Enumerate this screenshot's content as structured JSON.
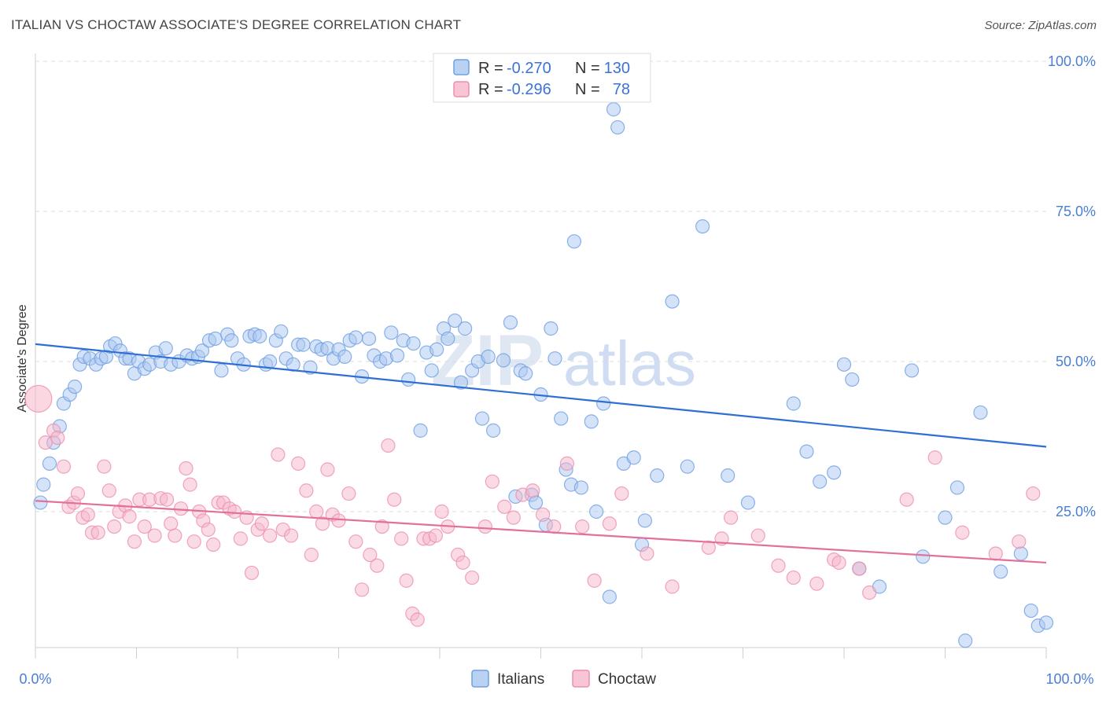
{
  "title": "ITALIAN VS CHOCTAW ASSOCIATE'S DEGREE CORRELATION CHART",
  "source": "Source: ZipAtlas.com",
  "watermark": {
    "zip": "ZIP",
    "atlas": "atlas"
  },
  "legend": {
    "rows": [
      {
        "r_label": "R =",
        "r_value": "-0.270",
        "n_label": "N =",
        "n_value": "130",
        "color": "#a9c7ef"
      },
      {
        "r_label": "R =",
        "r_value": "-0.296",
        "n_label": "N =",
        "n_value": "78",
        "color": "#f6b6c9"
      }
    ]
  },
  "bottom_legend": [
    {
      "label": "Italians",
      "color": "#a9c7ef"
    },
    {
      "label": "Choctaw",
      "color": "#f6b6c9"
    }
  ],
  "chart_data": {
    "type": "scatter",
    "ylabel": "Associate's Degree",
    "xlim": [
      0,
      100
    ],
    "ylim": [
      0,
      100
    ],
    "x_tick_labels": {
      "left": "0.0%",
      "right": "100.0%"
    },
    "y_tick_labels": [
      "25.0%",
      "50.0%",
      "75.0%",
      "100.0%"
    ],
    "y_tick_values": [
      25,
      50,
      75,
      100
    ],
    "grid": "horizontal dashed",
    "series": [
      {
        "name": "Italians",
        "color": "#6f9fe3",
        "fill": "#a9c7ef",
        "trend": {
          "x0": 0,
          "y0": 52.9,
          "x1": 100,
          "y1": 35.8,
          "color": "#2f6fd4"
        },
        "points": [
          [
            0.5,
            26.5
          ],
          [
            0.8,
            29.5
          ],
          [
            1.4,
            33
          ],
          [
            1.8,
            36.5
          ],
          [
            2.4,
            39.2
          ],
          [
            2.8,
            43
          ],
          [
            3.4,
            44.5
          ],
          [
            3.9,
            45.8
          ],
          [
            4.4,
            49.5
          ],
          [
            4.8,
            50.8
          ],
          [
            5.4,
            50.5
          ],
          [
            6,
            49.5
          ],
          [
            6.5,
            50.5
          ],
          [
            7,
            50.8
          ],
          [
            7.4,
            52.5
          ],
          [
            7.9,
            53
          ],
          [
            8.4,
            51.8
          ],
          [
            8.9,
            50.5
          ],
          [
            9.3,
            50.5
          ],
          [
            9.8,
            48
          ],
          [
            10.2,
            50
          ],
          [
            10.8,
            48.8
          ],
          [
            11.3,
            49.5
          ],
          [
            11.9,
            51.5
          ],
          [
            12.4,
            50
          ],
          [
            12.9,
            52.2
          ],
          [
            13.4,
            49.5
          ],
          [
            14.2,
            50
          ],
          [
            15,
            51
          ],
          [
            15.5,
            50.5
          ],
          [
            16.1,
            50.8
          ],
          [
            16.5,
            51.8
          ],
          [
            17.2,
            53.5
          ],
          [
            17.8,
            53.8
          ],
          [
            18.4,
            48.5
          ],
          [
            19,
            54.5
          ],
          [
            19.4,
            53.5
          ],
          [
            20,
            50.5
          ],
          [
            20.6,
            49.5
          ],
          [
            21.2,
            54.2
          ],
          [
            21.7,
            54.5
          ],
          [
            22.2,
            54.2
          ],
          [
            22.8,
            49.5
          ],
          [
            23.2,
            50
          ],
          [
            23.8,
            53.5
          ],
          [
            24.3,
            55
          ],
          [
            24.8,
            50.5
          ],
          [
            25.5,
            49.5
          ],
          [
            26,
            52.8
          ],
          [
            26.5,
            52.8
          ],
          [
            27.2,
            49
          ],
          [
            27.8,
            52.5
          ],
          [
            28.3,
            52
          ],
          [
            28.9,
            52.2
          ],
          [
            29.5,
            50.5
          ],
          [
            30,
            52
          ],
          [
            30.6,
            50.8
          ],
          [
            31.1,
            53.5
          ],
          [
            31.7,
            54
          ],
          [
            32.3,
            47.5
          ],
          [
            33,
            53.8
          ],
          [
            33.5,
            51
          ],
          [
            34.1,
            50
          ],
          [
            34.7,
            50.5
          ],
          [
            35.2,
            54.8
          ],
          [
            35.8,
            51
          ],
          [
            36.4,
            53.5
          ],
          [
            36.9,
            47
          ],
          [
            37.4,
            53
          ],
          [
            38.1,
            38.5
          ],
          [
            38.7,
            51.5
          ],
          [
            39.2,
            48.5
          ],
          [
            39.7,
            52
          ],
          [
            40.4,
            55.5
          ],
          [
            40.8,
            53.8
          ],
          [
            41.5,
            56.8
          ],
          [
            42.1,
            46.5
          ],
          [
            42.5,
            55.5
          ],
          [
            43.2,
            48.5
          ],
          [
            43.8,
            50
          ],
          [
            44.2,
            40.5
          ],
          [
            44.8,
            50.8
          ],
          [
            45.3,
            38.5
          ],
          [
            46.3,
            50.2
          ],
          [
            47,
            56.5
          ],
          [
            47.5,
            27.5
          ],
          [
            48,
            48.5
          ],
          [
            48.5,
            48
          ],
          [
            49.1,
            27.8
          ],
          [
            49.5,
            26.5
          ],
          [
            50,
            44.5
          ],
          [
            50.5,
            22.8
          ],
          [
            51,
            55.5
          ],
          [
            51.4,
            50.5
          ],
          [
            52,
            40.5
          ],
          [
            52.5,
            32
          ],
          [
            53,
            29.5
          ],
          [
            53.3,
            70
          ],
          [
            54,
            29
          ],
          [
            55,
            40
          ],
          [
            55.5,
            25
          ],
          [
            56.2,
            43
          ],
          [
            56.8,
            10.8
          ],
          [
            57.2,
            92
          ],
          [
            57.6,
            89
          ],
          [
            58.2,
            33
          ],
          [
            59.2,
            34
          ],
          [
            60,
            19.5
          ],
          [
            60.3,
            23.5
          ],
          [
            61.5,
            31
          ],
          [
            63,
            60
          ],
          [
            64.5,
            32.5
          ],
          [
            66,
            72.5
          ],
          [
            68.5,
            31
          ],
          [
            70.5,
            26.5
          ],
          [
            75,
            43
          ],
          [
            76.3,
            35
          ],
          [
            77.6,
            30
          ],
          [
            79,
            31.5
          ],
          [
            80,
            49.5
          ],
          [
            80.8,
            47
          ],
          [
            81.5,
            15.5
          ],
          [
            83.5,
            12.5
          ],
          [
            86.7,
            48.5
          ],
          [
            87.8,
            17.5
          ],
          [
            90,
            24
          ],
          [
            91.2,
            29
          ],
          [
            92,
            3.5
          ],
          [
            93.5,
            41.5
          ],
          [
            95.5,
            15
          ],
          [
            97.5,
            18
          ],
          [
            98.5,
            8.5
          ],
          [
            99.2,
            6
          ],
          [
            100,
            6.5
          ]
        ]
      },
      {
        "name": "Choctaw",
        "color": "#ee8fae",
        "fill": "#f6b6c9",
        "trend": {
          "x0": 0,
          "y0": 26.8,
          "x1": 100,
          "y1": 16.5,
          "color": "#e2709a"
        },
        "points": [
          [
            0.3,
            43.8
          ],
          [
            1,
            36.5
          ],
          [
            1.8,
            38.5
          ],
          [
            2.2,
            37.3
          ],
          [
            2.8,
            32.5
          ],
          [
            3.3,
            25.8
          ],
          [
            3.8,
            26.5
          ],
          [
            4.2,
            28
          ],
          [
            4.7,
            24
          ],
          [
            5.2,
            24.5
          ],
          [
            5.6,
            21.5
          ],
          [
            6.2,
            21.5
          ],
          [
            6.8,
            32.5
          ],
          [
            7.3,
            28.5
          ],
          [
            7.8,
            22.5
          ],
          [
            8.3,
            25
          ],
          [
            8.9,
            26
          ],
          [
            9.3,
            24.2
          ],
          [
            9.8,
            20
          ],
          [
            10.3,
            27
          ],
          [
            10.8,
            22.5
          ],
          [
            11.3,
            27
          ],
          [
            11.8,
            21
          ],
          [
            12.4,
            27.2
          ],
          [
            13,
            27
          ],
          [
            13.4,
            23
          ],
          [
            13.8,
            21
          ],
          [
            14.4,
            25.5
          ],
          [
            14.9,
            32.2
          ],
          [
            15.3,
            29.5
          ],
          [
            15.7,
            20
          ],
          [
            16.2,
            25
          ],
          [
            16.6,
            23.5
          ],
          [
            17.1,
            22
          ],
          [
            17.6,
            19.5
          ],
          [
            18.1,
            26.5
          ],
          [
            18.6,
            26.5
          ],
          [
            19.2,
            25.5
          ],
          [
            19.7,
            25
          ],
          [
            20.3,
            20.5
          ],
          [
            20.9,
            24
          ],
          [
            21.4,
            14.8
          ],
          [
            22,
            22
          ],
          [
            22.4,
            23
          ],
          [
            23.2,
            21
          ],
          [
            24,
            34.5
          ],
          [
            24.5,
            22
          ],
          [
            25.3,
            21
          ],
          [
            26,
            33
          ],
          [
            26.8,
            28.5
          ],
          [
            27.3,
            17.8
          ],
          [
            27.8,
            25
          ],
          [
            28.4,
            23
          ],
          [
            28.9,
            32
          ],
          [
            29.4,
            24.5
          ],
          [
            30,
            23.5
          ],
          [
            31,
            28
          ],
          [
            31.7,
            20
          ],
          [
            32.3,
            12
          ],
          [
            33.1,
            17.8
          ],
          [
            33.8,
            16
          ],
          [
            34.3,
            22.5
          ],
          [
            34.9,
            36
          ],
          [
            35.5,
            27
          ],
          [
            36.2,
            20.5
          ],
          [
            36.7,
            13.5
          ],
          [
            37.3,
            8
          ],
          [
            37.8,
            7
          ],
          [
            38.4,
            20.5
          ],
          [
            39,
            20.5
          ],
          [
            39.6,
            21
          ],
          [
            40.2,
            25
          ],
          [
            40.8,
            22.5
          ],
          [
            41.8,
            17.8
          ],
          [
            42.3,
            16.5
          ],
          [
            43.2,
            14
          ],
          [
            44.5,
            22.5
          ],
          [
            45.2,
            30
          ],
          [
            46.4,
            25.8
          ],
          [
            47.3,
            24
          ],
          [
            48.2,
            27.8
          ],
          [
            49.2,
            28.5
          ],
          [
            50.2,
            24.5
          ],
          [
            51.3,
            22.5
          ],
          [
            52.6,
            33
          ],
          [
            54.1,
            22.5
          ],
          [
            55.3,
            13.5
          ],
          [
            56.8,
            23
          ],
          [
            58,
            28
          ],
          [
            60.5,
            18
          ],
          [
            63,
            12.5
          ],
          [
            66.6,
            19
          ],
          [
            67.9,
            20.5
          ],
          [
            68.8,
            24
          ],
          [
            71.5,
            21
          ],
          [
            73.5,
            16
          ],
          [
            75,
            14
          ],
          [
            77.3,
            13
          ],
          [
            79,
            17
          ],
          [
            79.5,
            16.5
          ],
          [
            81.5,
            15.5
          ],
          [
            82.5,
            11.5
          ],
          [
            86.2,
            27
          ],
          [
            89,
            34
          ],
          [
            91.7,
            21.5
          ],
          [
            95,
            18
          ],
          [
            97.3,
            20
          ],
          [
            98.7,
            28
          ]
        ]
      }
    ]
  }
}
